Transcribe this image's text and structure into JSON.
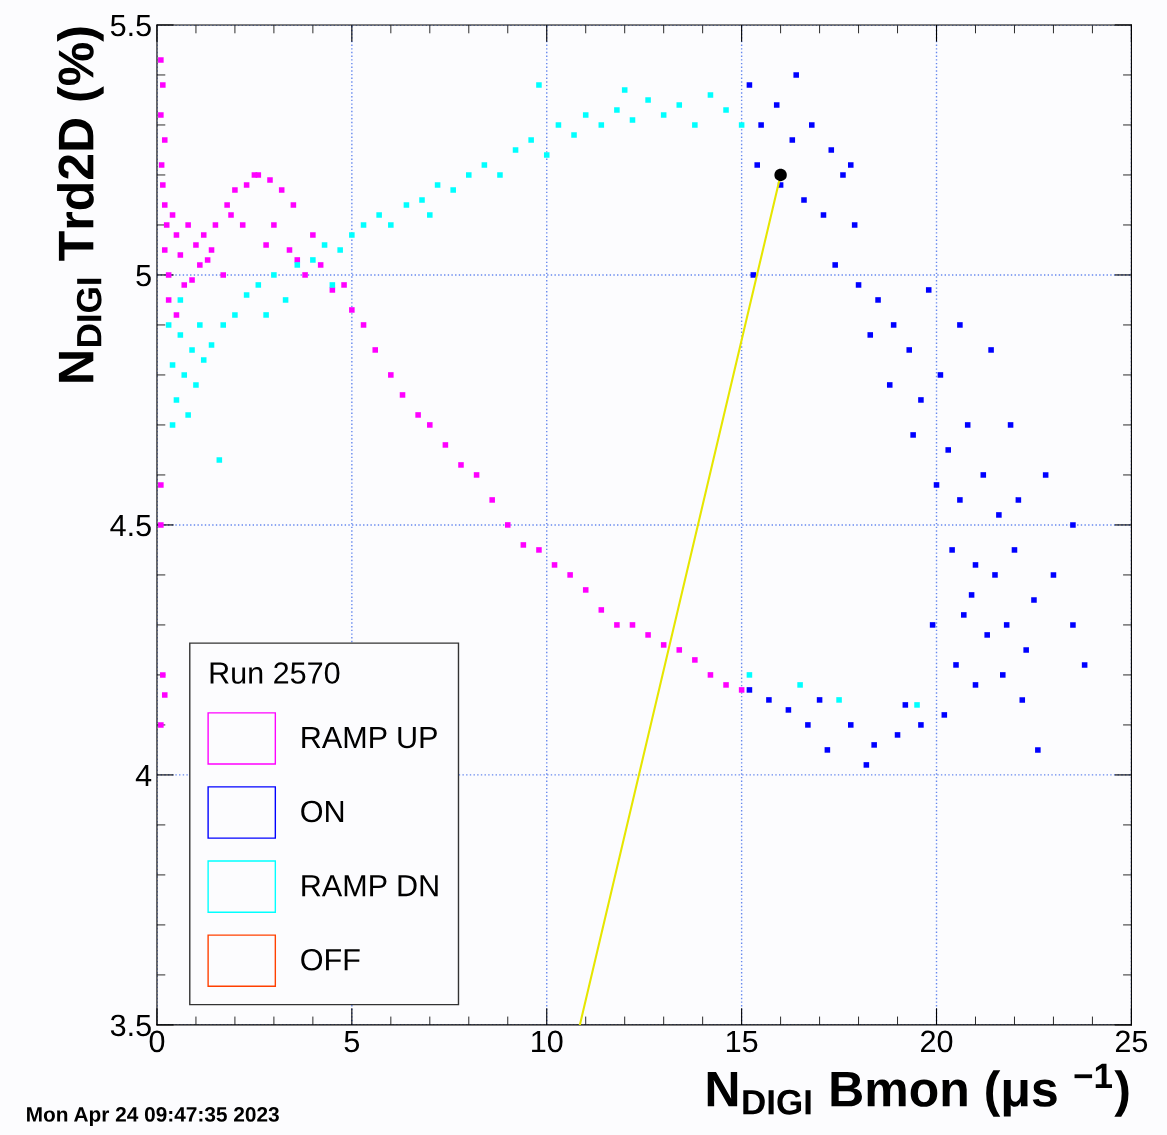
{
  "chart_data": {
    "type": "scatter",
    "xlabel": "N$_{DIGI}$ Bmon (μs $^{−1}$)",
    "ylabel": "N$_{DIGI}$ Trd2D (%)",
    "legend_title": "Run 2570",
    "legend": "bottom left",
    "grid": true,
    "marker": "square",
    "xlim": [
      0,
      25
    ],
    "ylim": [
      3.5,
      5.5
    ],
    "xticks": [
      0,
      5,
      10,
      15,
      20,
      25
    ],
    "yticks": [
      3.5,
      4,
      4.5,
      5,
      5.5
    ],
    "annotations": [
      "Mon Apr 24 09:47:35 2023"
    ],
    "series": [
      {
        "name": "RAMP UP",
        "color": "#ff00ff",
        "x": [
          0.1,
          0.15,
          0.1,
          0.2,
          0.12,
          0.15,
          0.2,
          0.25,
          0.2,
          0.3,
          0.3,
          0.5,
          0.4,
          0.6,
          0.8,
          1.0,
          1.2,
          1.5,
          1.8,
          2.0,
          2.3,
          2.6,
          2.9,
          3.2,
          3.5,
          0.7,
          1.1,
          1.4,
          1.9,
          2.2,
          2.8,
          3.0,
          3.4,
          3.8,
          4.0,
          0.5,
          0.9,
          1.3,
          1.7,
          2.5,
          3.6,
          4.2,
          4.5,
          4.8,
          5.0,
          5.3,
          5.6,
          6.0,
          6.3,
          6.7,
          7.0,
          7.4,
          7.8,
          8.2,
          8.6,
          9.0,
          9.4,
          9.8,
          10.2,
          10.6,
          11.0,
          11.4,
          11.8,
          12.2,
          12.6,
          13.0,
          13.4,
          13.8,
          14.2,
          14.6,
          15.0,
          0.1,
          0.1,
          0.15,
          0.2,
          0.1
        ],
        "values": [
          5.43,
          5.38,
          5.32,
          5.27,
          5.22,
          5.18,
          5.14,
          5.1,
          5.05,
          5.0,
          4.95,
          5.08,
          5.12,
          5.04,
          5.1,
          5.06,
          5.08,
          5.1,
          5.14,
          5.17,
          5.18,
          5.2,
          5.19,
          5.17,
          5.14,
          4.98,
          5.02,
          5.05,
          5.12,
          5.1,
          5.06,
          5.1,
          5.05,
          5.0,
          5.08,
          4.92,
          4.99,
          5.03,
          5.0,
          5.2,
          5.03,
          5.02,
          4.97,
          4.98,
          4.93,
          4.9,
          4.85,
          4.8,
          4.76,
          4.72,
          4.7,
          4.66,
          4.62,
          4.6,
          4.55,
          4.5,
          4.46,
          4.45,
          4.42,
          4.4,
          4.37,
          4.33,
          4.3,
          4.3,
          4.28,
          4.26,
          4.25,
          4.23,
          4.2,
          4.18,
          4.17,
          4.58,
          4.5,
          4.2,
          4.16,
          4.1
        ]
      },
      {
        "name": "ON",
        "color": "#0000ff",
        "x": [
          15.2,
          15.5,
          15.9,
          16.3,
          16.8,
          17.3,
          15.4,
          16.0,
          16.6,
          17.1,
          17.6,
          17.9,
          17.4,
          18.0,
          18.5,
          18.3,
          18.9,
          19.3,
          18.8,
          19.6,
          20.1,
          19.4,
          20.3,
          20.8,
          20.0,
          20.6,
          21.2,
          21.6,
          20.4,
          21.0,
          21.5,
          22.0,
          22.5,
          23.0,
          20.7,
          21.3,
          21.8,
          22.3,
          23.5,
          20.5,
          21.0,
          21.7,
          22.2,
          20.2,
          19.6,
          19.0,
          18.4,
          17.8,
          17.2,
          16.7,
          16.2,
          15.7,
          15.2,
          18.2,
          17.0,
          19.2,
          23.8,
          23.5,
          22.8,
          21.9,
          20.6,
          19.8,
          17.8,
          16.4,
          15.3,
          22.6,
          21.4,
          22.1,
          20.9,
          19.9
        ],
        "values": [
          5.38,
          5.3,
          5.34,
          5.27,
          5.3,
          5.25,
          5.22,
          5.18,
          5.15,
          5.12,
          5.2,
          5.1,
          5.02,
          4.98,
          4.95,
          4.88,
          4.9,
          4.85,
          4.78,
          4.75,
          4.8,
          4.68,
          4.65,
          4.7,
          4.58,
          4.55,
          4.6,
          4.52,
          4.45,
          4.42,
          4.4,
          4.45,
          4.35,
          4.4,
          4.32,
          4.28,
          4.3,
          4.25,
          4.3,
          4.22,
          4.18,
          4.2,
          4.15,
          4.12,
          4.1,
          4.08,
          4.06,
          4.1,
          4.05,
          4.1,
          4.13,
          4.15,
          4.17,
          4.02,
          4.15,
          4.14,
          4.22,
          4.5,
          4.6,
          4.7,
          4.9,
          4.97,
          5.22,
          5.4,
          5.0,
          4.05,
          4.85,
          4.55,
          4.36,
          4.3
        ]
      },
      {
        "name": "RAMP DN",
        "color": "#00ffff",
        "x": [
          0.3,
          0.4,
          0.5,
          0.6,
          0.7,
          0.8,
          0.9,
          1.0,
          1.2,
          1.4,
          0.4,
          0.6,
          1.1,
          1.6,
          1.7,
          2.0,
          2.3,
          2.6,
          3.0,
          3.3,
          3.6,
          4.0,
          4.3,
          4.7,
          5.0,
          5.3,
          5.7,
          6.0,
          6.4,
          6.8,
          7.2,
          7.6,
          8.0,
          8.4,
          8.8,
          9.2,
          9.6,
          10.0,
          10.3,
          10.7,
          11.0,
          11.4,
          11.8,
          12.2,
          12.6,
          13.0,
          13.4,
          13.8,
          14.2,
          14.6,
          15.0,
          9.8,
          12.0,
          4.5,
          2.8,
          7.0,
          15.2,
          17.5,
          19.5,
          16.5
        ],
        "values": [
          4.9,
          4.82,
          4.75,
          4.88,
          4.8,
          4.72,
          4.85,
          4.78,
          4.83,
          4.86,
          4.7,
          4.95,
          4.9,
          4.63,
          4.9,
          4.92,
          4.96,
          4.98,
          5.0,
          4.95,
          5.02,
          5.03,
          5.06,
          5.05,
          5.08,
          5.1,
          5.12,
          5.1,
          5.14,
          5.15,
          5.18,
          5.17,
          5.2,
          5.22,
          5.2,
          5.25,
          5.27,
          5.24,
          5.3,
          5.28,
          5.32,
          5.3,
          5.33,
          5.31,
          5.35,
          5.32,
          5.34,
          5.3,
          5.36,
          5.33,
          5.3,
          5.38,
          5.37,
          4.98,
          4.92,
          5.12,
          4.2,
          4.15,
          4.14,
          4.18
        ]
      },
      {
        "name": "OFF",
        "color": "#ff4000"
      },
      {
        "type": "line",
        "color": "#e6e600",
        "x": [
          10.85,
          16.0
        ],
        "values": [
          3.5,
          5.2
        ],
        "marker": "none"
      },
      {
        "color": "#000000",
        "x": [
          16.0
        ],
        "values": [
          5.2
        ],
        "marker": "circle"
      }
    ]
  }
}
